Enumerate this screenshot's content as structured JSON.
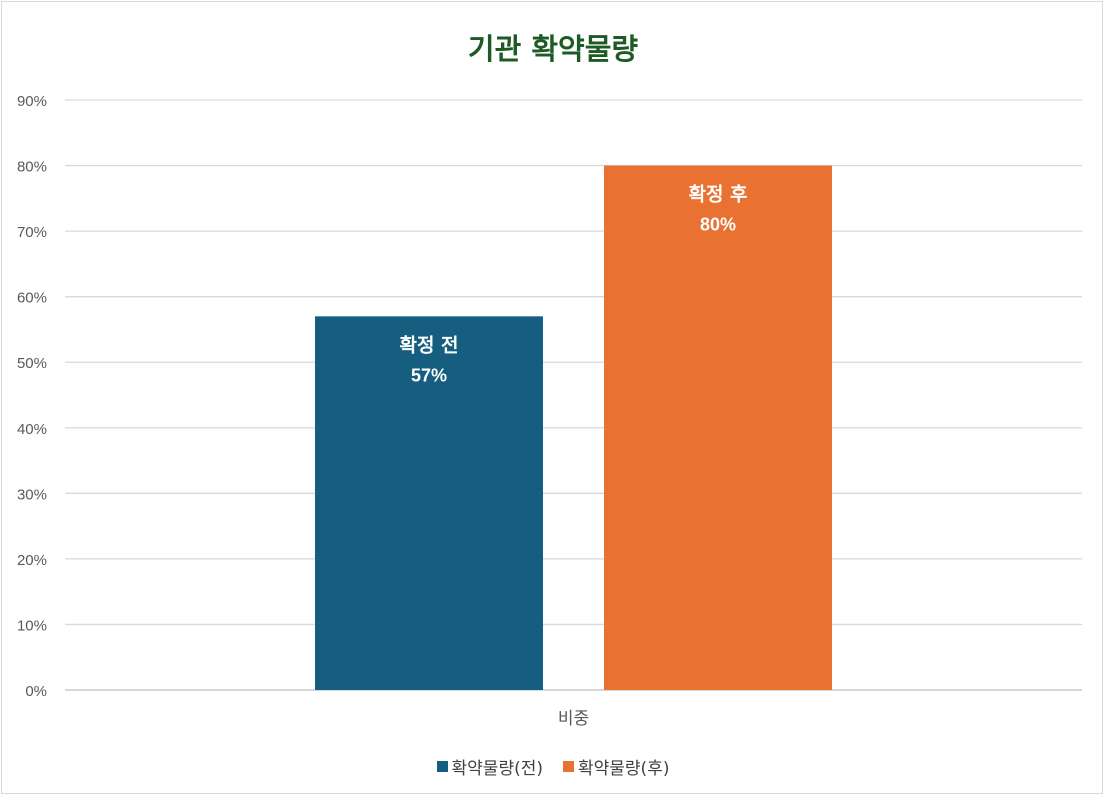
{
  "chart_data": {
    "type": "bar",
    "title": "기관 확약물량",
    "categories": [
      "비중"
    ],
    "series": [
      {
        "name": "확약물량(전)",
        "values": [
          57
        ],
        "color": "#165e80",
        "label_title": "확정 전",
        "label_value": "57%"
      },
      {
        "name": "확약물량(후)",
        "values": [
          80
        ],
        "color": "#e97132",
        "label_title": "확정 후",
        "label_value": "80%"
      }
    ],
    "ylim": [
      0,
      90
    ],
    "yticks": [
      0,
      10,
      20,
      30,
      40,
      50,
      60,
      70,
      80,
      90
    ],
    "ytick_labels": [
      "0%",
      "10%",
      "20%",
      "30%",
      "40%",
      "50%",
      "60%",
      "70%",
      "80%",
      "90%"
    ],
    "grid": true,
    "legend_position": "bottom"
  }
}
